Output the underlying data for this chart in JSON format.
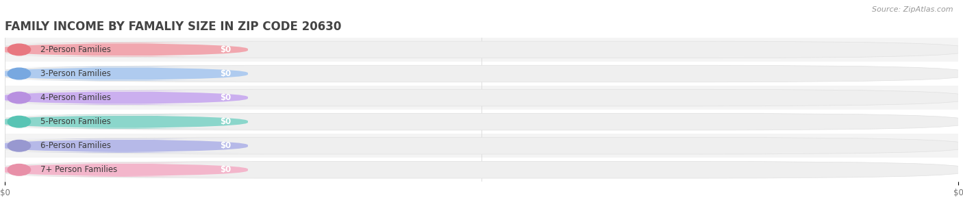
{
  "title": "FAMILY INCOME BY FAMALIY SIZE IN ZIP CODE 20630",
  "source_text": "Source: ZipAtlas.com",
  "categories": [
    "2-Person Families",
    "3-Person Families",
    "4-Person Families",
    "5-Person Families",
    "6-Person Families",
    "7+ Person Families"
  ],
  "values": [
    0,
    0,
    0,
    0,
    0,
    0
  ],
  "bar_colors": [
    "#f2a0a8",
    "#a8c8f0",
    "#c8a8f0",
    "#80d4c8",
    "#b0b4e8",
    "#f4b0c8"
  ],
  "circle_colors": [
    "#e87880",
    "#78a8e0",
    "#b890e0",
    "#58c4b4",
    "#9898d0",
    "#e890a8"
  ],
  "value_label": "$0",
  "xlabel_ticks": [
    "$0",
    "$0"
  ],
  "xtick_positions": [
    0.0,
    1.0
  ],
  "title_fontsize": 12,
  "label_fontsize": 8.5,
  "source_fontsize": 8,
  "background_color": "#ffffff",
  "grid_color": "#dddddd",
  "row_bg_alt": "#f4f4f4",
  "bar_track_color": "#efefef",
  "bar_track_edge": "#e0e0e0"
}
